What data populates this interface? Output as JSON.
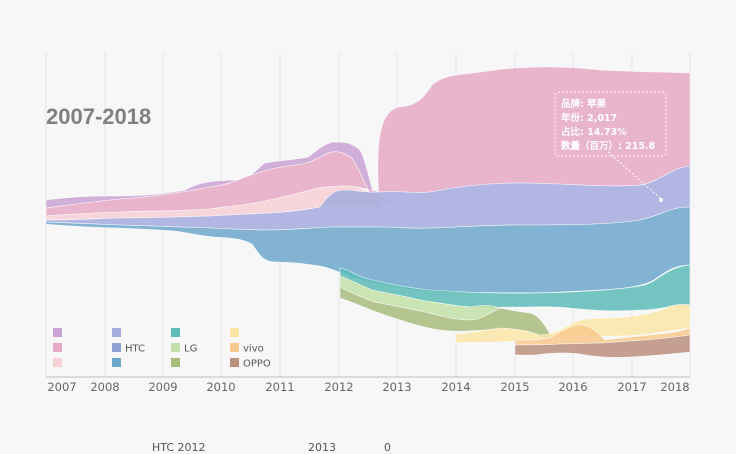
{
  "chart_data": {
    "type": "area",
    "subtype": "themeriver",
    "title": "2007-2018",
    "x_axis_ticks": [
      "2007",
      "2008",
      "2009",
      "2010",
      "2011",
      "2012",
      "2013",
      "2014",
      "2015",
      "2016",
      "2017",
      "2018"
    ],
    "legend_labels": [
      "",
      "",
      "",
      "",
      "HTC",
      "",
      "",
      "LG",
      "",
      "",
      "vivo",
      "OPPO"
    ],
    "legend_colors": [
      "#c9a3d4",
      "#e6a9c6",
      "#f7d0d6",
      "#a5acde",
      "#8e9fd2",
      "#6ea7cc",
      "#5dbcb7",
      "#c3e1a8",
      "#a8bc7e",
      "#fbe6a8",
      "#f7c98e",
      "#bc8f7e"
    ],
    "series_colors": {
      "s1": "#c9a3d4",
      "s2": "#e6a9c6",
      "s3": "#f7d0d6",
      "s4": "#a5acde",
      "s5": "#6ea7cc",
      "s6": "#5dbcb7",
      "s7": "#c3e1a8",
      "s8": "#a8bc7e",
      "s9": "#fbe6a8",
      "s10": "#f7c98e",
      "s11": "#bc8f7e"
    },
    "tooltip": {
      "line1": "品牌: 苹果",
      "line2": "年份: 2,017",
      "line3": "占比: 14.73%",
      "line4": "数量（百万）: 215.8"
    },
    "series": [
      {
        "name": "",
        "years": [
          2007,
          2018
        ],
        "trend": "bottom band in 2007"
      },
      {
        "name": "苹果",
        "years": [
          2007,
          2018
        ],
        "values": {
          "2017": 215.8
        },
        "share": {
          "2017": "14.73%"
        }
      },
      {
        "name": "",
        "years": [
          2007,
          2013
        ]
      },
      {
        "name": "",
        "years": [
          2007,
          2018
        ]
      },
      {
        "name": "",
        "years": [
          2007,
          2018
        ]
      },
      {
        "name": "",
        "years": [
          2012,
          2018
        ]
      },
      {
        "name": "LG",
        "years": [
          2012,
          2014
        ]
      },
      {
        "name": "",
        "years": [
          2012,
          2015
        ]
      },
      {
        "name": "",
        "years": [
          2014,
          2018
        ]
      },
      {
        "name": "vivo",
        "years": [
          2015,
          2018
        ]
      },
      {
        "name": "OPPO",
        "years": [
          2015,
          2018
        ]
      }
    ]
  },
  "footer": {
    "text1": "HTC  2012",
    "text2": "2013",
    "text3": "0"
  }
}
